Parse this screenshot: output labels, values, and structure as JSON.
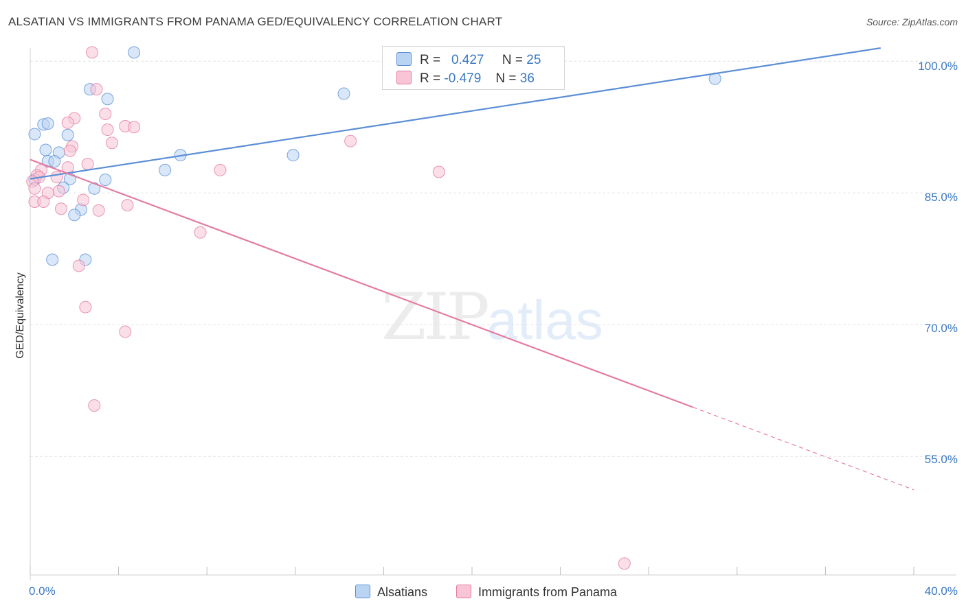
{
  "title": "ALSATIAN VS IMMIGRANTS FROM PANAMA GED/EQUIVALENCY CORRELATION CHART",
  "source": "Source: ZipAtlas.com",
  "watermark": {
    "part1": "ZIP",
    "part2": "atlas"
  },
  "legend": {
    "rows": [
      {
        "r_label": "R =",
        "r_value": "0.427",
        "n_label": "N =",
        "n_value": "25"
      },
      {
        "r_label": "R =",
        "r_value": "-0.479",
        "n_label": "N =",
        "n_value": "36"
      }
    ]
  },
  "chart_data": {
    "type": "scatter",
    "xlabel": "",
    "ylabel": "GED/Equivalency",
    "x_tick_labels": [
      "0.0%",
      "40.0%"
    ],
    "y_tick_labels": [
      "100.0%",
      "85.0%",
      "70.0%",
      "55.0%"
    ],
    "y_ticks": [
      100,
      85,
      70,
      55
    ],
    "xlim": [
      0,
      40
    ],
    "ylim": [
      41.5,
      101.5
    ],
    "grid": true,
    "series": [
      {
        "name": "Alsatians",
        "color": "#5b8ed6",
        "fill": "#b9d3f3",
        "trend": {
          "x": [
            0.0,
            38.5
          ],
          "y": [
            86.6,
            101.5
          ]
        },
        "points": [
          [
            4.7,
            101.0
          ],
          [
            2.7,
            96.8
          ],
          [
            3.5,
            95.7
          ],
          [
            14.2,
            96.3
          ],
          [
            31.0,
            98.0
          ],
          [
            0.6,
            92.8
          ],
          [
            0.8,
            92.9
          ],
          [
            0.2,
            91.7
          ],
          [
            1.7,
            91.6
          ],
          [
            0.7,
            89.9
          ],
          [
            1.3,
            89.6
          ],
          [
            0.8,
            88.6
          ],
          [
            1.1,
            88.6
          ],
          [
            6.8,
            89.3
          ],
          [
            11.9,
            89.3
          ],
          [
            0.2,
            86.5
          ],
          [
            1.8,
            86.6
          ],
          [
            3.4,
            86.5
          ],
          [
            6.1,
            87.6
          ],
          [
            1.5,
            85.6
          ],
          [
            2.9,
            85.5
          ],
          [
            2.3,
            83.1
          ],
          [
            2.0,
            82.5
          ],
          [
            1.0,
            77.4
          ],
          [
            2.5,
            77.4
          ]
        ]
      },
      {
        "name": "Immigrants from Panama",
        "color": "#e57ba1",
        "fill": "#f8c4d6",
        "trend": {
          "x": [
            0.0,
            30.0
          ],
          "y": [
            88.8,
            60.6
          ]
        },
        "trend_dashed": {
          "x": [
            30.0,
            40.0
          ],
          "y": [
            60.6,
            51.2
          ]
        },
        "points": [
          [
            2.8,
            101.0
          ],
          [
            3.0,
            96.8
          ],
          [
            3.4,
            94.0
          ],
          [
            2.0,
            93.5
          ],
          [
            1.7,
            93.0
          ],
          [
            4.3,
            92.6
          ],
          [
            4.7,
            92.5
          ],
          [
            3.5,
            92.2
          ],
          [
            3.7,
            90.7
          ],
          [
            14.5,
            90.9
          ],
          [
            1.9,
            90.3
          ],
          [
            1.8,
            89.8
          ],
          [
            2.6,
            88.3
          ],
          [
            1.7,
            87.9
          ],
          [
            0.5,
            87.6
          ],
          [
            0.3,
            87.0
          ],
          [
            0.4,
            86.8
          ],
          [
            1.2,
            86.8
          ],
          [
            8.6,
            87.6
          ],
          [
            18.5,
            87.4
          ],
          [
            0.1,
            86.3
          ],
          [
            0.2,
            85.5
          ],
          [
            1.3,
            85.2
          ],
          [
            0.8,
            85.0
          ],
          [
            2.4,
            84.2
          ],
          [
            0.2,
            84.0
          ],
          [
            0.6,
            84.0
          ],
          [
            4.4,
            83.6
          ],
          [
            3.1,
            83.0
          ],
          [
            1.4,
            83.2
          ],
          [
            7.7,
            80.5
          ],
          [
            2.2,
            76.7
          ],
          [
            2.5,
            72.0
          ],
          [
            4.3,
            69.2
          ],
          [
            2.9,
            60.8
          ],
          [
            26.9,
            42.8
          ]
        ]
      }
    ]
  }
}
